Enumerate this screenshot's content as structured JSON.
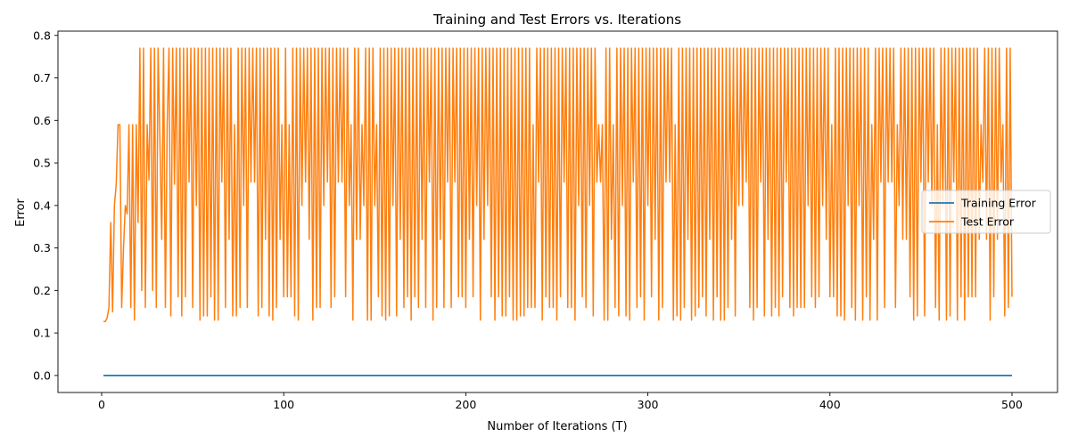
{
  "chart_data": {
    "type": "line",
    "title": "Training and Test Errors vs. Iterations",
    "xlabel": "Number of Iterations (T)",
    "ylabel": "Error",
    "xlim": [
      -24,
      525
    ],
    "ylim": [
      -0.04,
      0.81
    ],
    "xticks": [
      0,
      100,
      200,
      300,
      400,
      500
    ],
    "yticks": [
      0.0,
      0.1,
      0.2,
      0.3,
      0.4,
      0.5,
      0.6,
      0.7,
      0.8
    ],
    "xtick_labels": [
      "0",
      "100",
      "200",
      "300",
      "400",
      "500"
    ],
    "ytick_labels": [
      "0.0",
      "0.1",
      "0.2",
      "0.3",
      "0.4",
      "0.5",
      "0.6",
      "0.7",
      "0.8"
    ],
    "grid": false,
    "legend": "center-right",
    "series": [
      {
        "name": "Training Error",
        "color": "#1f77b4",
        "x_range": [
          1,
          500
        ],
        "constant_value": 0.0
      },
      {
        "name": "Test Error",
        "color": "#ff7f0e",
        "x": [
          1,
          2,
          3,
          4,
          5,
          6,
          7,
          8,
          9,
          10,
          11,
          12,
          13,
          14,
          15,
          16,
          17,
          18,
          19,
          20,
          21,
          22,
          23,
          24,
          25,
          26,
          27,
          28,
          29,
          30,
          31,
          32,
          33,
          34,
          35,
          36,
          37,
          38,
          39,
          40
        ],
        "values": [
          0.127,
          0.127,
          0.135,
          0.16,
          0.36,
          0.15,
          0.4,
          0.45,
          0.59,
          0.59,
          0.16,
          0.3,
          0.4,
          0.38,
          0.59,
          0.16,
          0.59,
          0.13,
          0.59,
          0.36,
          0.77,
          0.2,
          0.77,
          0.16,
          0.59,
          0.46,
          0.77,
          0.2,
          0.77,
          0.16,
          0.77,
          0.55,
          0.32,
          0.77,
          0.16,
          0.59,
          0.77,
          0.14,
          0.77,
          0.45
        ],
        "oscillation_range": [
          0.13,
          0.77
        ],
        "oscillation_levels": [
          0.13,
          0.14,
          0.16,
          0.185,
          0.32,
          0.4,
          0.455,
          0.59,
          0.77
        ]
      }
    ]
  }
}
